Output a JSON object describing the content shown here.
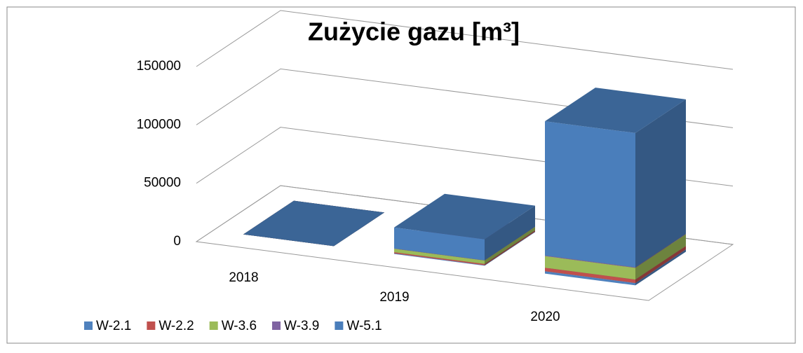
{
  "chart_data": {
    "type": "bar3d_stacked",
    "title": "Zużycie gazu [m³]",
    "categories": [
      "2018",
      "2019",
      "2020"
    ],
    "series": [
      {
        "name": "W-2.1",
        "color": "#4f81bd",
        "values": [
          0,
          500,
          2000
        ]
      },
      {
        "name": "W-2.2",
        "color": "#c0504d",
        "values": [
          0,
          1000,
          3000
        ]
      },
      {
        "name": "W-3.6",
        "color": "#9bbb59",
        "values": [
          0,
          3000,
          10000
        ]
      },
      {
        "name": "W-3.9",
        "color": "#8064a2",
        "values": [
          0,
          200,
          500
        ]
      },
      {
        "name": "W-5.1",
        "color": "#4a7ebb",
        "values": [
          0,
          18000,
          115000
        ]
      }
    ],
    "ylim": [
      0,
      150000
    ],
    "yticks": [
      0,
      50000,
      100000,
      150000
    ],
    "grid": true,
    "legend": "bottom"
  }
}
